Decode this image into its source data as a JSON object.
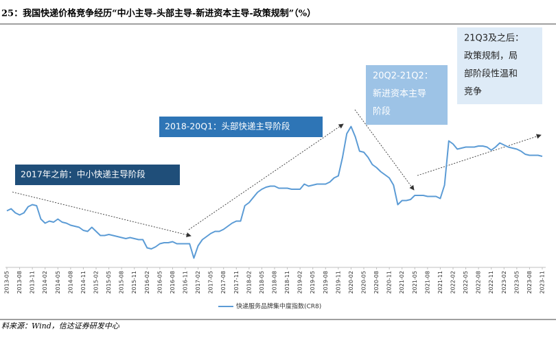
{
  "chart_data": {
    "type": "line",
    "title": "25：我国快递价格竞争经历“中小主导-头部主导-新进资本主导-政策规制”（%）",
    "source": "料来源：Wind，信达证券研发中心",
    "categories": [
      "2013-05",
      null,
      null,
      "2013-08",
      null,
      null,
      "2013-11",
      null,
      null,
      "2014-02",
      null,
      null,
      "2014-05",
      null,
      null,
      "2014-08",
      null,
      null,
      "2014-11",
      null,
      null,
      "2015-02",
      null,
      null,
      "2015-05",
      null,
      null,
      "2015-08",
      null,
      null,
      "2015-11",
      null,
      null,
      "2016-02",
      null,
      null,
      "2016-05",
      null,
      null,
      "2016-08",
      null,
      null,
      "2016-11",
      null,
      null,
      "2017-02",
      null,
      null,
      "2017-05",
      null,
      null,
      "2017-08",
      null,
      null,
      "2017-11",
      null,
      null,
      "2018-02",
      null,
      null,
      "2018-05",
      null,
      null,
      "2018-08",
      null,
      null,
      "2018-11",
      null,
      null,
      "2019-02",
      null,
      null,
      "2019-05",
      null,
      null,
      "2019-08",
      null,
      null,
      "2019-11",
      null,
      null,
      "2020-02",
      null,
      null,
      "2020-05",
      null,
      null,
      "2020-08",
      null,
      null,
      "2020-11",
      null,
      null,
      "2021-02",
      null,
      null,
      "2021-05",
      null,
      null,
      "2021-08",
      null,
      null,
      "2021-11",
      null,
      null,
      "2022-02",
      null,
      null,
      "2022-05",
      null,
      null,
      "2022-08",
      null,
      null,
      "2022-11",
      null,
      null,
      "2023-02",
      null,
      null,
      "2023-05",
      null,
      null,
      "2023-08",
      null,
      null,
      "2023-11"
    ],
    "series": [
      {
        "name": "快递服务品牌集中度指数(CR8)",
        "color": "#5b9bd5",
        "values": [
          75.5,
          75.7,
          75.3,
          75.1,
          75.3,
          75.9,
          76.1,
          76.0,
          74.7,
          74.3,
          74.5,
          74.4,
          74.7,
          74.4,
          74.3,
          74.1,
          74.0,
          73.9,
          73.6,
          73.5,
          73.9,
          73.5,
          73.1,
          73.1,
          73.2,
          73.1,
          73.0,
          72.9,
          72.8,
          72.9,
          72.8,
          72.7,
          72.7,
          71.9,
          71.8,
          72.0,
          72.3,
          72.4,
          72.4,
          72.5,
          72.3,
          72.3,
          72.3,
          72.3,
          70.9,
          72.1,
          72.7,
          73.0,
          73.3,
          73.5,
          73.5,
          73.7,
          74.0,
          74.3,
          74.5,
          74.5,
          76.0,
          76.3,
          76.8,
          77.3,
          77.6,
          77.8,
          77.9,
          77.9,
          77.7,
          77.7,
          77.7,
          77.6,
          77.6,
          77.6,
          78.1,
          77.9,
          78.0,
          78.1,
          78.1,
          78.1,
          78.3,
          78.7,
          78.9,
          80.7,
          83.0,
          83.7,
          82.7,
          81.3,
          81.2,
          80.7,
          80.0,
          79.7,
          79.3,
          79.0,
          78.7,
          78.0,
          76.1,
          76.5,
          76.5,
          76.6,
          77.0,
          77.0,
          77.0,
          76.9,
          76.9,
          76.9,
          76.7,
          78.0,
          82.3,
          82.0,
          81.5,
          81.6,
          81.7,
          81.7,
          81.7,
          81.8,
          81.8,
          81.7,
          81.4,
          81.7,
          82.1,
          81.9,
          81.7,
          81.6,
          81.5,
          81.3,
          81.0,
          80.9,
          80.9,
          80.9,
          80.8
        ]
      }
    ],
    "ylim": [
      70,
      93
    ],
    "annotations": [
      {
        "lines": [
          "2017年之前：中小快递主导阶段"
        ],
        "color": "#1f4e79"
      },
      {
        "lines": [
          "2018-20Q1：头部快递主导阶段"
        ],
        "color": "#2e75b6"
      },
      {
        "lines": [
          "20Q2-21Q2：",
          "新进资本主导",
          "阶段"
        ],
        "color": "#9dc3e6"
      },
      {
        "lines": [
          "21Q3及之后：",
          "政策规制，局",
          "部阶段性温和",
          "竞争"
        ],
        "color": "#deebf7"
      }
    ]
  }
}
